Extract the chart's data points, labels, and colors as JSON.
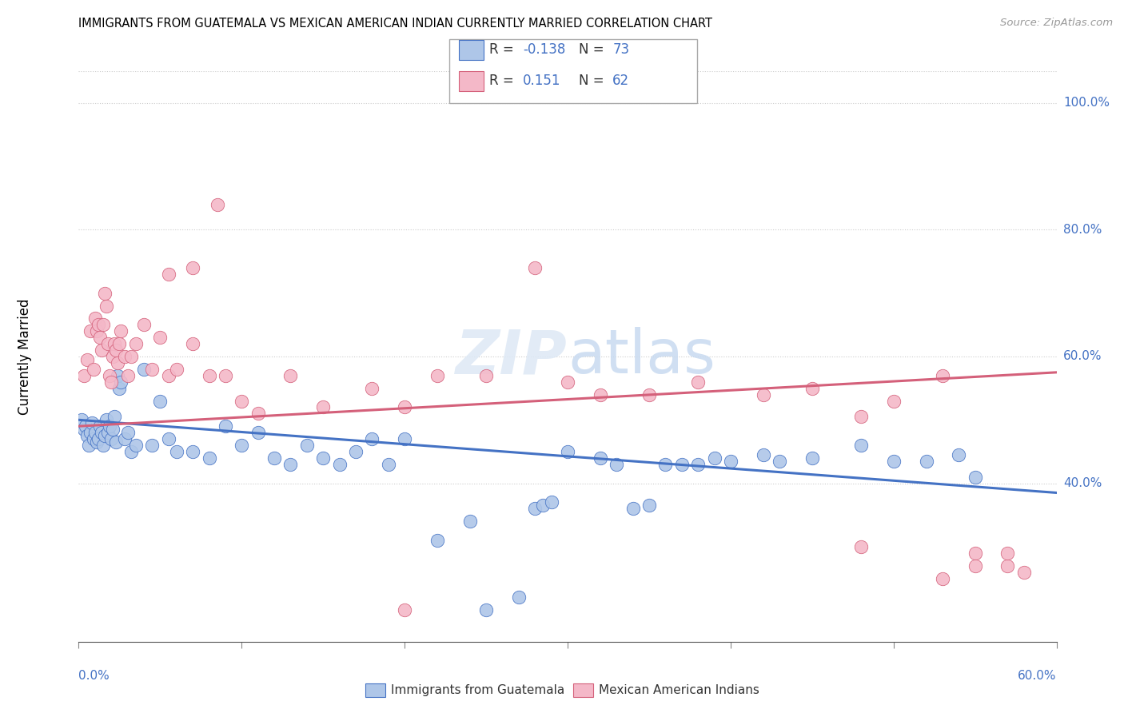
{
  "title": "IMMIGRANTS FROM GUATEMALA VS MEXICAN AMERICAN INDIAN CURRENTLY MARRIED CORRELATION CHART",
  "source": "Source: ZipAtlas.com",
  "ylabel": "Currently Married",
  "right_yticks": [
    40.0,
    60.0,
    80.0,
    100.0
  ],
  "legend_blue_r": "-0.138",
  "legend_blue_n": "N = 73",
  "legend_pink_r": "0.151",
  "legend_pink_n": "N = 62",
  "legend_label_blue": "Immigrants from Guatemala",
  "legend_label_pink": "Mexican American Indians",
  "watermark": "ZIPatlas",
  "blue_color": "#aec6e8",
  "pink_color": "#f4b8c8",
  "blue_edge": "#4472c4",
  "pink_edge": "#d4607a",
  "blue_line": "#4472c4",
  "pink_line": "#d4607a",
  "scatter_blue_x": [
    0.2,
    0.3,
    0.4,
    0.5,
    0.6,
    0.7,
    0.8,
    0.9,
    1.0,
    1.1,
    1.2,
    1.3,
    1.4,
    1.5,
    1.6,
    1.7,
    1.8,
    1.9,
    2.0,
    2.1,
    2.2,
    2.3,
    2.4,
    2.5,
    2.6,
    2.8,
    3.0,
    3.2,
    3.5,
    4.0,
    4.5,
    5.0,
    5.5,
    6.0,
    7.0,
    8.0,
    9.0,
    10.0,
    11.0,
    12.0,
    13.0,
    14.0,
    15.0,
    16.0,
    17.0,
    18.0,
    19.0,
    20.0,
    22.0,
    24.0,
    25.0,
    27.0,
    28.0,
    28.5,
    29.0,
    30.0,
    32.0,
    33.0,
    34.0,
    35.0,
    36.0,
    37.0,
    38.0,
    39.0,
    40.0,
    42.0,
    43.0,
    45.0,
    48.0,
    50.0,
    52.0,
    54.0,
    55.0
  ],
  "scatter_blue_y": [
    50.0,
    48.5,
    49.0,
    47.5,
    46.0,
    48.0,
    49.5,
    47.0,
    48.0,
    46.5,
    47.0,
    49.0,
    48.0,
    46.0,
    47.5,
    50.0,
    48.0,
    49.0,
    47.0,
    48.5,
    50.5,
    46.5,
    57.0,
    55.0,
    56.0,
    47.0,
    48.0,
    45.0,
    46.0,
    58.0,
    46.0,
    53.0,
    47.0,
    45.0,
    45.0,
    44.0,
    49.0,
    46.0,
    48.0,
    44.0,
    43.0,
    46.0,
    44.0,
    43.0,
    45.0,
    47.0,
    43.0,
    47.0,
    31.0,
    34.0,
    20.0,
    22.0,
    36.0,
    36.5,
    37.0,
    45.0,
    44.0,
    43.0,
    36.0,
    36.5,
    43.0,
    43.0,
    43.0,
    44.0,
    43.5,
    44.5,
    43.5,
    44.0,
    46.0,
    43.5,
    43.5,
    44.5,
    41.0
  ],
  "scatter_pink_x": [
    0.3,
    0.5,
    0.7,
    0.9,
    1.0,
    1.1,
    1.2,
    1.3,
    1.4,
    1.5,
    1.6,
    1.7,
    1.8,
    1.9,
    2.0,
    2.1,
    2.2,
    2.3,
    2.4,
    2.5,
    2.6,
    2.8,
    3.0,
    3.2,
    3.5,
    4.0,
    4.5,
    5.0,
    5.5,
    6.0,
    7.0,
    8.0,
    9.0,
    10.0,
    11.0,
    13.0,
    15.0,
    18.0,
    20.0,
    22.0,
    25.0,
    28.0,
    30.0,
    32.0,
    35.0,
    38.0,
    42.0,
    45.0,
    48.0,
    50.0,
    53.0,
    55.0,
    57.0,
    58.0,
    20.0,
    48.0,
    53.0,
    55.0,
    57.0,
    5.5,
    7.0,
    8.5
  ],
  "scatter_pink_y": [
    57.0,
    59.5,
    64.0,
    58.0,
    66.0,
    64.0,
    65.0,
    63.0,
    61.0,
    65.0,
    70.0,
    68.0,
    62.0,
    57.0,
    56.0,
    60.0,
    62.0,
    61.0,
    59.0,
    62.0,
    64.0,
    60.0,
    57.0,
    60.0,
    62.0,
    65.0,
    58.0,
    63.0,
    57.0,
    58.0,
    62.0,
    57.0,
    57.0,
    53.0,
    51.0,
    57.0,
    52.0,
    55.0,
    52.0,
    57.0,
    57.0,
    74.0,
    56.0,
    54.0,
    54.0,
    56.0,
    54.0,
    55.0,
    50.5,
    53.0,
    57.0,
    29.0,
    27.0,
    26.0,
    20.0,
    30.0,
    25.0,
    27.0,
    29.0,
    73.0,
    74.0,
    84.0
  ],
  "xmin": 0.0,
  "xmax": 60.0,
  "ymin": 15.0,
  "ymax": 105.0,
  "blue_trend_x": [
    0.0,
    60.0
  ],
  "blue_trend_y": [
    50.0,
    38.5
  ],
  "pink_trend_x": [
    0.0,
    60.0
  ],
  "pink_trend_y": [
    49.0,
    57.5
  ]
}
